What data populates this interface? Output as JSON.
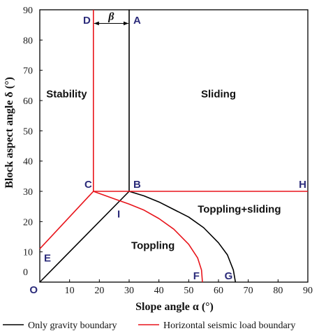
{
  "chart_data": {
    "type": "line",
    "xlabel": "Slope angle  α (°)",
    "ylabel": "Block aspect angle  δ (°)",
    "xlim": [
      0,
      90
    ],
    "ylim": [
      0,
      90
    ],
    "x_ticks": [
      "0",
      "10",
      "20",
      "30",
      "40",
      "50",
      "60",
      "70",
      "80",
      "90"
    ],
    "y_ticks": [
      "0",
      "10",
      "20",
      "30",
      "40",
      "50",
      "60",
      "70",
      "80",
      "90"
    ],
    "grid": false,
    "legend_position": "bottom",
    "series": [
      {
        "name": "Only gravity boundary",
        "color": "#000000",
        "segments": [
          [
            [
              30,
              90
            ],
            [
              30,
              30
            ]
          ],
          [
            [
              0,
              0
            ],
            [
              30,
              30
            ]
          ],
          [
            [
              30,
              30
            ],
            [
              35,
              28.5
            ],
            [
              40,
              26.5
            ],
            [
              45,
              24
            ],
            [
              50,
              21.5
            ],
            [
              55,
              18
            ],
            [
              60,
              13
            ],
            [
              63,
              9
            ],
            [
              65,
              4
            ],
            [
              65.7,
              0
            ]
          ]
        ]
      },
      {
        "name": "Horizontal seismic load boundary",
        "color": "#e8141b",
        "segments": [
          [
            [
              18,
              90
            ],
            [
              18,
              30
            ]
          ],
          [
            [
              0,
              11
            ],
            [
              18,
              30
            ]
          ],
          [
            [
              18,
              30
            ],
            [
              90,
              30
            ]
          ],
          [
            [
              18,
              30
            ],
            [
              25,
              27.5
            ],
            [
              30,
              25.8
            ],
            [
              35,
              23.8
            ],
            [
              40,
              21
            ],
            [
              45,
              17.5
            ],
            [
              50,
              12.5
            ],
            [
              53,
              8
            ],
            [
              54.3,
              4
            ],
            [
              54.6,
              0
            ]
          ]
        ]
      }
    ],
    "point_labels": [
      {
        "text": "A",
        "x": 30,
        "y": 90
      },
      {
        "text": "B",
        "x": 30,
        "y": 30
      },
      {
        "text": "C",
        "x": 18,
        "y": 30
      },
      {
        "text": "D",
        "x": 18,
        "y": 90
      },
      {
        "text": "E",
        "x": 0,
        "y": 11
      },
      {
        "text": "F",
        "x": 54.6,
        "y": 0
      },
      {
        "text": "G",
        "x": 65.7,
        "y": 0
      },
      {
        "text": "H",
        "x": 90,
        "y": 30
      },
      {
        "text": "I",
        "x": 26.5,
        "y": 26
      },
      {
        "text": "O",
        "x": 0,
        "y": 0
      }
    ],
    "region_labels": [
      {
        "text": "Stability",
        "x": 9,
        "y": 61
      },
      {
        "text": "Sliding",
        "x": 60,
        "y": 61
      },
      {
        "text": "Toppling+sliding",
        "x": 67,
        "y": 23
      },
      {
        "text": "Toppling",
        "x": 38,
        "y": 11
      }
    ],
    "annotation": {
      "text": "β",
      "x_from": 18,
      "x_to": 30,
      "y": 85.5
    }
  }
}
